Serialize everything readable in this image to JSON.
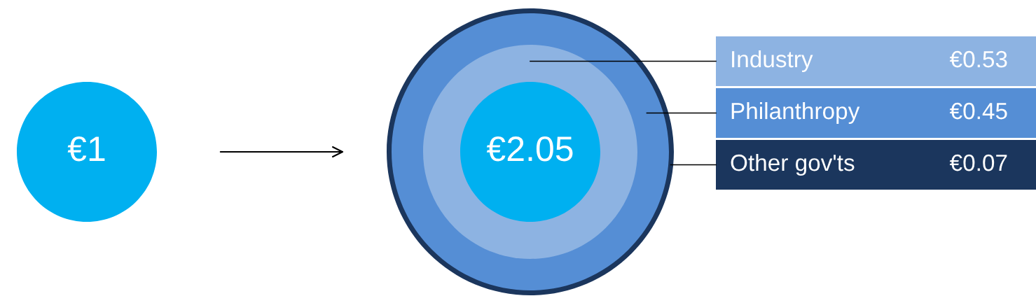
{
  "chart_data": {
    "type": "other",
    "categories": [
      "Industry",
      "Philanthropy",
      "Other gov'ts"
    ],
    "values": [
      0.53,
      0.45,
      0.07
    ],
    "value_labels": [
      "€0.53",
      "€0.45",
      "€0.07"
    ],
    "colors": [
      "#8db3e2",
      "#558ed5",
      "#1b365d"
    ],
    "color": "#00b0f0",
    "annotations": [
      "€1",
      "€2.05"
    ]
  }
}
